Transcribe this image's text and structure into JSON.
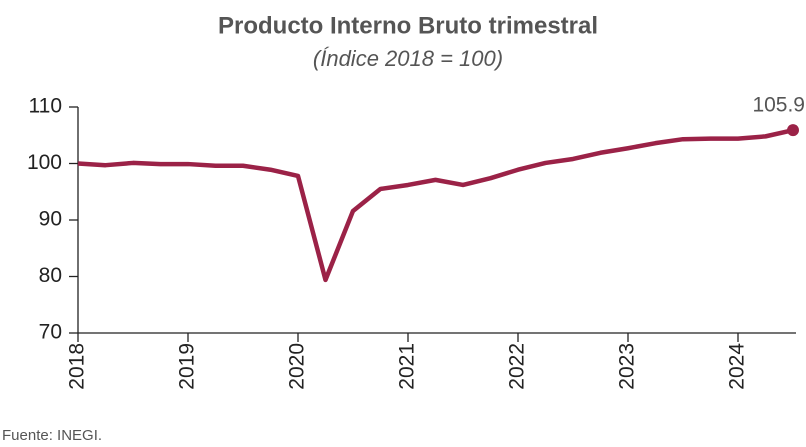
{
  "chart_data": {
    "type": "line",
    "title": "Producto Interno Bruto trimestral",
    "subtitle": "(Índice 2018 = 100)",
    "source": "Fuente: INEGI.",
    "x": [
      2018,
      2018.25,
      2018.5,
      2018.75,
      2019,
      2019.25,
      2019.5,
      2019.75,
      2020,
      2020.25,
      2020.5,
      2020.75,
      2021,
      2021.25,
      2021.5,
      2021.75,
      2022,
      2022.25,
      2022.5,
      2022.75,
      2023,
      2023.25,
      2023.5,
      2023.75,
      2024,
      2024.25,
      2024.5
    ],
    "series": [
      {
        "color": "#9b2247",
        "values": [
          100.0,
          99.7,
          100.1,
          99.9,
          99.9,
          99.6,
          99.6,
          98.9,
          97.8,
          79.4,
          91.6,
          95.5,
          96.2,
          97.1,
          96.2,
          97.4,
          98.9,
          100.1,
          100.8,
          101.9,
          102.7,
          103.6,
          104.3,
          104.4,
          104.4,
          104.8,
          105.9
        ]
      }
    ],
    "xlim": [
      2018,
      2024.5
    ],
    "xticks": [
      2018,
      2019,
      2020,
      2021,
      2022,
      2023,
      2024
    ],
    "ylim": [
      70,
      110
    ],
    "yticks": [
      70,
      80,
      90,
      100,
      110
    ],
    "grid": false
  }
}
